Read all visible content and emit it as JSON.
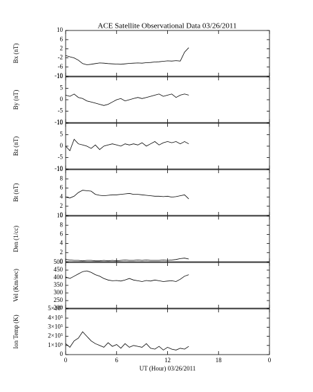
{
  "chart_data": [
    {
      "type": "line",
      "title": "ACE Satellite Observational Data   03/26/2011",
      "ylabel": "Bx (nT)",
      "color": "#000000",
      "x": [
        0,
        0.5,
        1,
        1.5,
        2,
        2.5,
        3,
        3.5,
        4,
        4.5,
        5,
        5.5,
        6,
        6.5,
        7,
        7.5,
        8,
        8.5,
        9,
        9.5,
        10,
        10.5,
        11,
        11.5,
        12,
        12.5,
        13,
        13.5,
        14,
        14.5
      ],
      "xlim": [
        0,
        24
      ],
      "xticks": [
        0,
        6,
        12,
        18,
        {
          "value": 24,
          "label": "0"
        }
      ],
      "xlabel": "UT (Hour)  03/26/2011",
      "values": [
        -1,
        -1.5,
        -2,
        -3,
        -4.5,
        -5,
        -4.8,
        -4.5,
        -4.2,
        -4.3,
        -4.5,
        -4.6,
        -4.7,
        -4.8,
        -4.6,
        -4.4,
        -4.3,
        -4.2,
        -4.3,
        -4.1,
        -4,
        -3.8,
        -3.7,
        -3.5,
        -3.3,
        -3.4,
        -3.2,
        -3.4,
        0.5,
        2.5
      ],
      "ylim": [
        -10,
        10
      ],
      "yticks": [
        -10,
        -6,
        -2,
        2,
        6,
        10
      ]
    },
    {
      "type": "line",
      "ylabel": "By (nT)",
      "color": "#000000",
      "values": [
        2,
        1.5,
        2.5,
        1,
        0.5,
        -0.5,
        -1,
        -1.5,
        -2,
        -2.5,
        -2,
        -1,
        0,
        0.5,
        -0.5,
        0,
        0.5,
        1,
        0.5,
        1,
        1.5,
        2,
        2.5,
        1.5,
        2,
        2.5,
        1,
        2,
        2.5,
        2
      ],
      "ylim": [
        -10,
        10
      ],
      "yticks": [
        -10,
        -5,
        0,
        5,
        10
      ]
    },
    {
      "type": "line",
      "ylabel": "Bz (nT)",
      "color": "#000000",
      "values": [
        0,
        -2,
        3,
        1,
        0.5,
        0,
        -1,
        0.5,
        -1.5,
        0,
        0.5,
        1,
        0.5,
        0,
        1,
        0.5,
        1,
        0.5,
        1.5,
        0,
        1,
        2,
        0.5,
        1.5,
        2,
        1.5,
        2,
        1,
        2,
        1
      ],
      "ylim": [
        -10,
        10
      ],
      "yticks": [
        -10,
        -5,
        0,
        5,
        10
      ]
    },
    {
      "type": "line",
      "ylabel": "Bt (nT)",
      "color": "#000000",
      "values": [
        4,
        3.8,
        4.2,
        5,
        5.5,
        5.4,
        5.3,
        4.6,
        4.4,
        4.3,
        4.4,
        4.5,
        4.5,
        4.6,
        4.7,
        4.8,
        4.6,
        4.6,
        4.5,
        4.4,
        4.3,
        4.2,
        4.2,
        4.1,
        4.2,
        4.0,
        4.1,
        4.3,
        4.5,
        3.6
      ],
      "ylim": [
        0,
        10
      ],
      "yticks": [
        0,
        2,
        4,
        6,
        8,
        10
      ]
    },
    {
      "type": "line",
      "ylabel": "Den (1/cc)",
      "color": "#000000",
      "values": [
        0.5,
        0.4,
        0.3,
        0.3,
        0.2,
        0.3,
        0.3,
        0.2,
        0.2,
        0.3,
        0.2,
        0.3,
        0.2,
        0.3,
        0.4,
        0.3,
        0.3,
        0.4,
        0.3,
        0.4,
        0.3,
        0.3,
        0.3,
        0.4,
        0.3,
        0.4,
        0.5,
        0.7,
        0.8,
        0.6
      ],
      "ylim": [
        0,
        10
      ],
      "yticks": [
        0,
        2,
        4,
        6,
        8,
        10
      ]
    },
    {
      "type": "line",
      "ylabel": "Vel (Km/sec)",
      "color": "#000000",
      "values": [
        405,
        395,
        410,
        425,
        440,
        445,
        435,
        420,
        410,
        395,
        385,
        380,
        382,
        378,
        385,
        395,
        385,
        380,
        375,
        382,
        378,
        385,
        380,
        375,
        378,
        380,
        375,
        390,
        410,
        420
      ],
      "ylim": [
        200,
        500
      ],
      "yticks": [
        200,
        250,
        300,
        350,
        400,
        450,
        500
      ]
    },
    {
      "type": "line",
      "ylabel": "Ion Temp (K)",
      "color": "#000000",
      "values": [
        120000,
        80000,
        150000,
        180000,
        250000,
        200000,
        150000,
        120000,
        100000,
        80000,
        130000,
        90000,
        110000,
        70000,
        120000,
        80000,
        100000,
        90000,
        80000,
        120000,
        70000,
        60000,
        90000,
        50000,
        80000,
        60000,
        50000,
        70000,
        60000,
        90000
      ],
      "ylim": [
        0,
        500000
      ],
      "yticks": [
        0,
        {
          "value": 100000,
          "label": "1×10⁵"
        },
        {
          "value": 200000,
          "label": "2×10⁵"
        },
        {
          "value": 300000,
          "label": "3×10⁵"
        },
        {
          "value": 400000,
          "label": "4×10⁵"
        },
        {
          "value": 500000,
          "label": "5×10⁵"
        }
      ]
    }
  ]
}
